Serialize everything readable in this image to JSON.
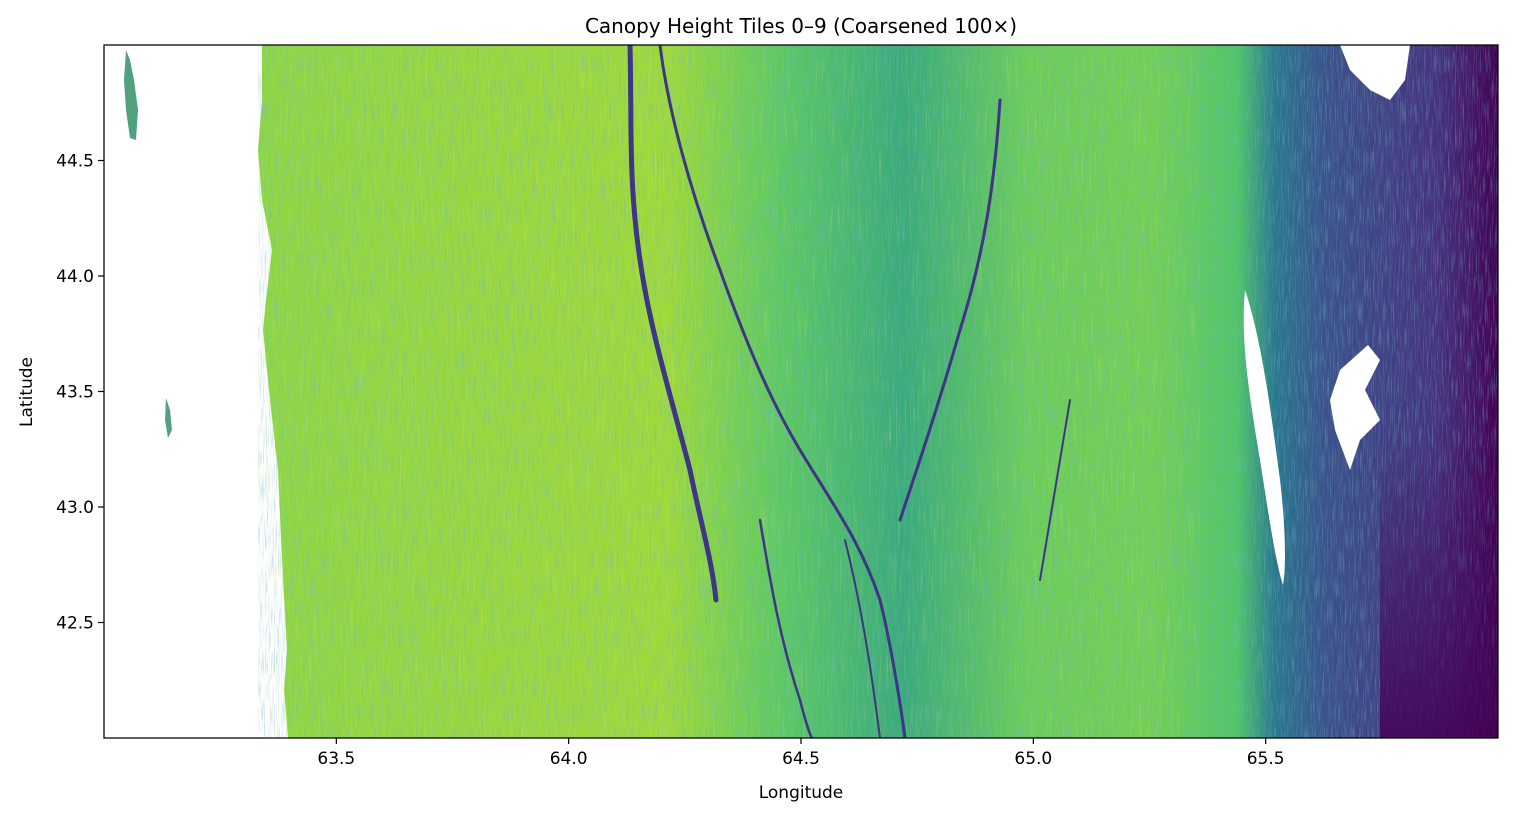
{
  "chart_data": {
    "type": "heatmap",
    "title": "Canopy Height Tiles 0–9 (Coarsened 100×)",
    "xlabel": "Longitude",
    "ylabel": "Latitude",
    "xlim": [
      63.0,
      66.0
    ],
    "ylim": [
      42.0,
      45.0
    ],
    "x_ticks": [
      63.5,
      64.0,
      64.5,
      65.0,
      65.5
    ],
    "x_tick_labels": [
      "63.5",
      "64.0",
      "64.5",
      "65.0",
      "65.5"
    ],
    "y_ticks": [
      42.5,
      43.0,
      43.5,
      44.0,
      44.5
    ],
    "y_tick_labels": [
      "42.5",
      "43.0",
      "43.5",
      "44.0",
      "44.5"
    ],
    "colormap": "viridis",
    "grid": false,
    "colorbar": false,
    "data_extent_west": 63.35,
    "colors": {
      "low": "#440154",
      "mid": "#21918c",
      "high": "#bddf26",
      "nodata": "#ffffff"
    }
  }
}
